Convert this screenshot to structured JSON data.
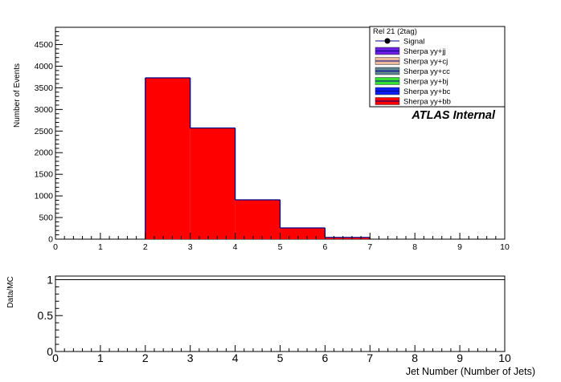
{
  "chart_data": [
    {
      "type": "bar",
      "panel": "main",
      "x_edges": [
        0,
        1,
        2,
        3,
        4,
        5,
        6,
        7,
        8,
        9,
        10
      ],
      "xlim": [
        0,
        10
      ],
      "ylim": [
        0,
        4900
      ],
      "xticks": [
        "0",
        "1",
        "2",
        "3",
        "4",
        "5",
        "6",
        "7",
        "8",
        "9",
        "10"
      ],
      "yticks": [
        0,
        500,
        1000,
        1500,
        2000,
        2500,
        3000,
        3500,
        4000,
        4500
      ],
      "ylabel": "Number of Events",
      "series": [
        {
          "name": "Signal",
          "values": [
            0,
            0,
            0,
            0,
            0,
            0,
            0,
            0,
            0,
            0
          ]
        },
        {
          "name": "Sherpa yy+jj",
          "values": [
            0,
            0,
            0,
            0,
            0,
            0,
            0,
            0,
            0,
            0
          ]
        },
        {
          "name": "Sherpa yy+cj",
          "values": [
            0,
            0,
            0,
            0,
            0,
            0,
            0,
            0,
            0,
            0
          ]
        },
        {
          "name": "Sherpa yy+cc",
          "values": [
            0,
            0,
            0,
            0,
            0,
            0,
            0,
            0,
            0,
            0
          ]
        },
        {
          "name": "Sherpa yy+bj",
          "values": [
            0,
            0,
            0,
            0,
            0,
            0,
            0,
            0,
            0,
            0
          ]
        },
        {
          "name": "Sherpa yy+bc",
          "values": [
            0,
            0,
            0,
            0,
            0,
            0,
            0,
            0,
            0,
            0
          ]
        },
        {
          "name": "Sherpa yy+bb",
          "values": [
            0,
            0,
            3730,
            2570,
            910,
            260,
            40,
            0,
            0,
            0
          ]
        }
      ],
      "legend": {
        "header": "Rel 21 (2tag)",
        "placement": "top-right",
        "entries": [
          {
            "label": "Signal",
            "style": "marker",
            "color": "#000000"
          },
          {
            "label": "Sherpa yy+jj",
            "style": "box",
            "color": "#6a1fe0"
          },
          {
            "label": "Sherpa yy+cj",
            "style": "box",
            "color": "#e8b99a"
          },
          {
            "label": "Sherpa yy+cc",
            "style": "box",
            "color": "#5a7f8f"
          },
          {
            "label": "Sherpa yy+bj",
            "style": "box",
            "color": "#33e033"
          },
          {
            "label": "Sherpa yy+bc",
            "style": "box",
            "color": "#0a1ef0"
          },
          {
            "label": "Sherpa yy+bb",
            "style": "box",
            "color": "#ff0000"
          }
        ]
      },
      "annotation": "ATLAS  Internal",
      "fill_color": "#ff0000",
      "outline_color": "#00008b"
    },
    {
      "type": "line",
      "panel": "ratio",
      "xlim": [
        0,
        10
      ],
      "ylim": [
        0,
        1.05
      ],
      "xticks": [
        "0",
        "1",
        "2",
        "3",
        "4",
        "5",
        "6",
        "7",
        "8",
        "9",
        "10"
      ],
      "yticks": [
        "0",
        "0.5",
        "1"
      ],
      "ylabel": "Data/MC",
      "xlabel": "Jet Number (Number of Jets)",
      "reference_line": 1,
      "series": []
    }
  ]
}
